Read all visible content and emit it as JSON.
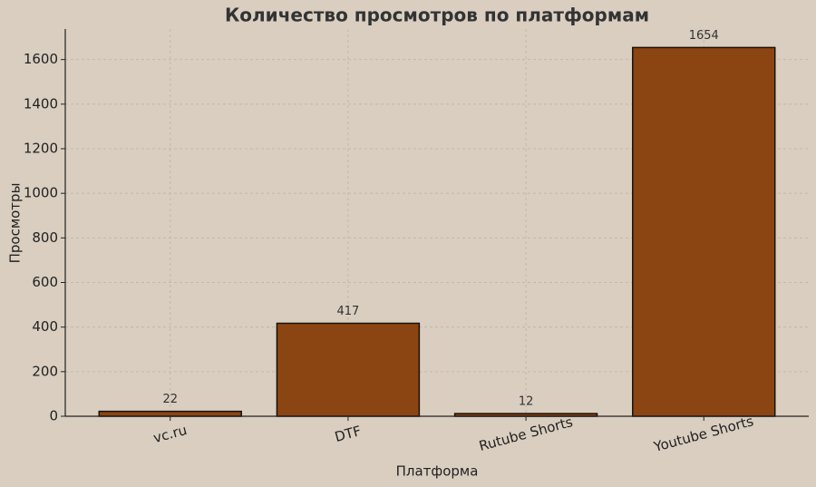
{
  "chart_data": {
    "type": "bar",
    "title": "Количество просмотров по платформам",
    "x_label": "Платформа",
    "y_label": "Просмотры",
    "categories": [
      "vc.ru",
      "DTF",
      "Rutube Shorts",
      "Youtube Shorts"
    ],
    "values": [
      22,
      417,
      12,
      1654
    ],
    "color": "#8b4513",
    "ylim": [
      0,
      1737
    ],
    "yticks": [
      0,
      200,
      400,
      600,
      800,
      1000,
      1200,
      1400,
      1600
    ],
    "grid": true
  }
}
